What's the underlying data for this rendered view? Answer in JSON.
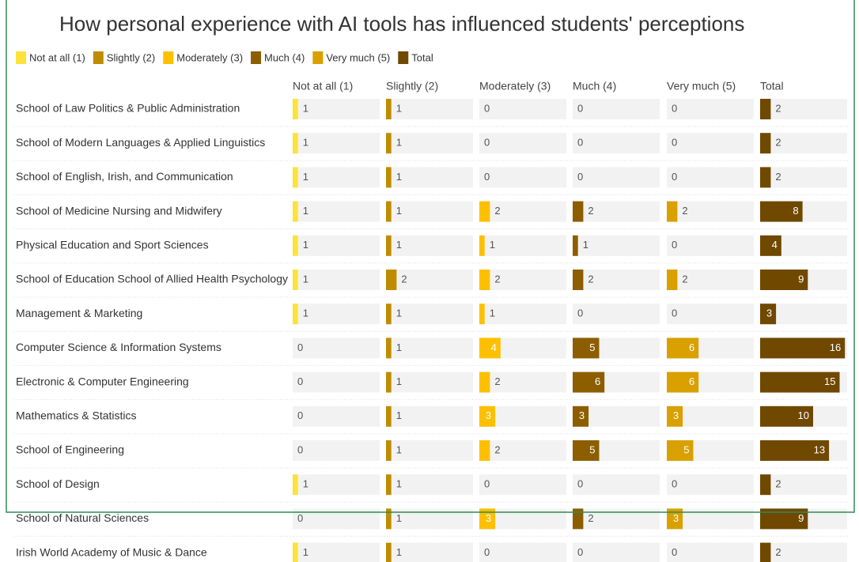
{
  "chart_data": {
    "type": "table-bar",
    "title": "How personal experience with AI tools has influenced students' perceptions",
    "categories": [
      "School of Law Politics & Public Administration",
      "School of Modern Languages & Applied Linguistics",
      "School of English, Irish, and Communication",
      "School of Medicine Nursing and Midwifery",
      "Physical Education and Sport Sciences",
      "School of Education School of Allied Health Psychology",
      "Management & Marketing",
      "Computer Science & Information Systems",
      "Electronic & Computer Engineering",
      "Mathematics & Statistics",
      "School of Engineering",
      "School of Design",
      "School of Natural Sciences",
      "Irish World Academy of Music & Dance"
    ],
    "series": [
      {
        "name": "Not at all (1)",
        "color": "#fde23a",
        "values": [
          1,
          1,
          1,
          1,
          1,
          1,
          1,
          0,
          0,
          0,
          0,
          1,
          0,
          1
        ]
      },
      {
        "name": "Slightly (2)",
        "color": "#bf8c00",
        "values": [
          1,
          1,
          1,
          1,
          1,
          2,
          1,
          1,
          1,
          1,
          1,
          1,
          1,
          1
        ]
      },
      {
        "name": "Moderately (3)",
        "color": "#fdc000",
        "values": [
          0,
          0,
          0,
          2,
          1,
          2,
          1,
          4,
          2,
          3,
          2,
          0,
          3,
          0
        ]
      },
      {
        "name": "Much (4)",
        "color": "#8c5e00",
        "values": [
          0,
          0,
          0,
          2,
          1,
          2,
          0,
          5,
          6,
          3,
          5,
          0,
          2,
          0
        ]
      },
      {
        "name": "Very much (5)",
        "color": "#d9a000",
        "values": [
          0,
          0,
          0,
          2,
          0,
          2,
          0,
          6,
          6,
          3,
          5,
          0,
          3,
          0
        ]
      },
      {
        "name": "Total",
        "color": "#704800",
        "values": [
          2,
          2,
          2,
          8,
          4,
          9,
          3,
          16,
          15,
          10,
          13,
          2,
          9,
          2
        ]
      }
    ]
  }
}
